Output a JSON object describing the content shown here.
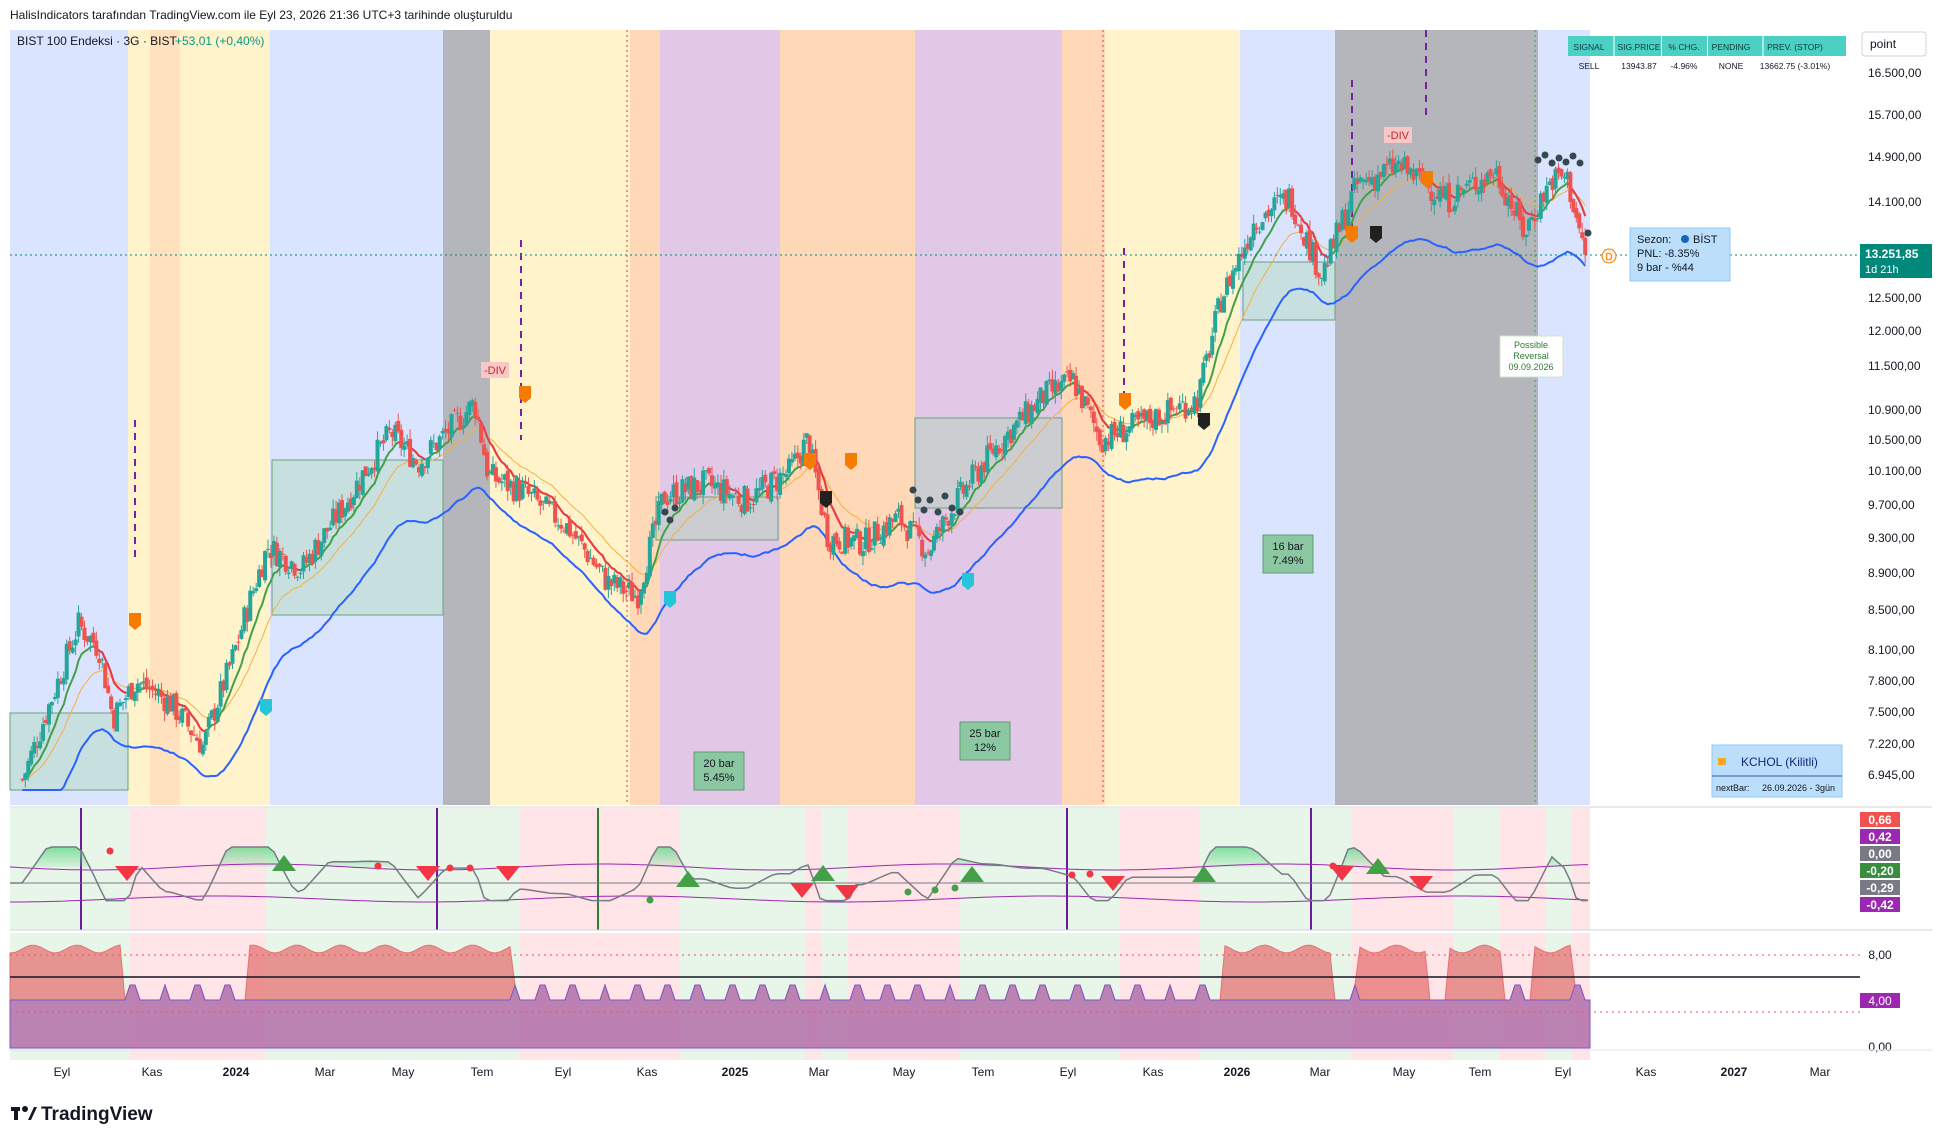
{
  "header": {
    "caption": "HalisIndicators tarafından TradingView.com ile Eyl 23, 2026 21:36 UTC+3 tarihinde oluşturuldu",
    "symbol_line": "BIST 100 Endeksi · 3G · BIST",
    "change": "+53,01 (+0,40%)",
    "scale_mode": "point"
  },
  "signal_table": {
    "headers": [
      "SIGNAL",
      "SIG.PRICE",
      "% CHG.",
      "PENDING",
      "PREV. (STOP)"
    ],
    "row": [
      "SELL",
      "13943.87",
      "-4.96%",
      "NONE",
      "13662.75 (-3.01%)"
    ]
  },
  "price_axis": {
    "labels": [
      "16.500,00",
      "15.700,00",
      "14.900,00",
      "14.100,00",
      "12.500,00",
      "12.000,00",
      "11.500,00",
      "10.900,00",
      "10.500,00",
      "10.100,00",
      "9.700,00",
      "9.300,00",
      "8.900,00",
      "8.500,00",
      "8.100,00",
      "7.800,00",
      "7.500,00",
      "7.220,00",
      "6.945,00"
    ],
    "current_price": "13.251,85",
    "current_countdown": "1d 21h"
  },
  "time_axis": {
    "labels": [
      "Eyl",
      "Kas",
      "2024",
      "Mar",
      "May",
      "Tem",
      "Eyl",
      "Kas",
      "2025",
      "Mar",
      "May",
      "Tem",
      "Eyl",
      "Kas",
      "2026",
      "Mar",
      "May",
      "Tem",
      "Eyl",
      "Kas",
      "2027",
      "Mar"
    ],
    "bold_labels": [
      "2024",
      "2025",
      "2026",
      "2027"
    ]
  },
  "position_box": {
    "line1": "Sezon:",
    "line1b": "BİST",
    "line2": "PNL: -8.35%",
    "line3": "9 bar - %44"
  },
  "reversal_label": {
    "line1": "Possible",
    "line2": "Reversal",
    "line3": "09.09.2026"
  },
  "div_labels": [
    "-DIV",
    "-DIV"
  ],
  "d_marker": "D",
  "bar_boxes": [
    {
      "bars": "20 bar",
      "pct": "5.45%"
    },
    {
      "bars": "25 bar",
      "pct": "12%"
    },
    {
      "bars": "16 bar",
      "pct": "7.49%"
    }
  ],
  "locked_panel": {
    "title": "KCHOL (Kilitli)",
    "next_bar_label": "nextBar:",
    "next_bar_value": "26.09.2026 - 3gün"
  },
  "osc_axis": {
    "labels": [
      "0,66",
      "0,42",
      "0,00",
      "-0,20",
      "-0,29",
      "-0,42"
    ],
    "colors": [
      "#ef5350",
      "#9c27b0",
      "#787b86",
      "#388e3c",
      "#787b86",
      "#9c27b0"
    ]
  },
  "vol_axis": {
    "labels": [
      "8,00",
      "4,00",
      "0,00"
    ]
  },
  "footer": {
    "brand": "TradingView"
  },
  "colors": {
    "up": "#26a69a",
    "down": "#ef5350",
    "red_line": "#f23645",
    "green_line": "#43a047",
    "blue_band": "#2962ff",
    "orange_ma": "#f5b041",
    "highlight": "#00897b"
  },
  "chart_data": {
    "type": "candlestick",
    "timeframe": "3G",
    "ylim": [
      6800,
      16800
    ],
    "x_range": [
      "2023-08",
      "2027-04"
    ],
    "close_path": [
      {
        "date": "2023-08-10",
        "value": 6900
      },
      {
        "date": "2023-09-01",
        "value": 7650
      },
      {
        "date": "2023-09-20",
        "value": 8350
      },
      {
        "date": "2023-10-05",
        "value": 8120
      },
      {
        "date": "2023-10-15",
        "value": 7450
      },
      {
        "date": "2023-11-01",
        "value": 7800
      },
      {
        "date": "2023-11-25",
        "value": 7600
      },
      {
        "date": "2023-12-20",
        "value": 7200
      },
      {
        "date": "2024-01-10",
        "value": 8000
      },
      {
        "date": "2024-02-05",
        "value": 9200
      },
      {
        "date": "2024-03-01",
        "value": 8950
      },
      {
        "date": "2024-04-01",
        "value": 9700
      },
      {
        "date": "2024-05-05",
        "value": 10600
      },
      {
        "date": "2024-05-25",
        "value": 10200
      },
      {
        "date": "2024-06-20",
        "value": 10700
      },
      {
        "date": "2024-07-05",
        "value": 11000
      },
      {
        "date": "2024-07-15",
        "value": 10050
      },
      {
        "date": "2024-08-10",
        "value": 9850
      },
      {
        "date": "2024-09-10",
        "value": 9450
      },
      {
        "date": "2024-10-10",
        "value": 8800
      },
      {
        "date": "2024-11-01",
        "value": 8650
      },
      {
        "date": "2024-11-20",
        "value": 9800
      },
      {
        "date": "2024-12-20",
        "value": 9950
      },
      {
        "date": "2025-01-20",
        "value": 9750
      },
      {
        "date": "2025-02-20",
        "value": 10100
      },
      {
        "date": "2025-03-05",
        "value": 10500
      },
      {
        "date": "2025-03-20",
        "value": 9300
      },
      {
        "date": "2025-04-15",
        "value": 9250
      },
      {
        "date": "2025-05-10",
        "value": 9550
      },
      {
        "date": "2025-06-01",
        "value": 9150
      },
      {
        "date": "2025-06-20",
        "value": 9700
      },
      {
        "date": "2025-07-20",
        "value": 10400
      },
      {
        "date": "2025-08-25",
        "value": 11100
      },
      {
        "date": "2025-09-15",
        "value": 11300
      },
      {
        "date": "2025-10-05",
        "value": 10500
      },
      {
        "date": "2025-10-25",
        "value": 10650
      },
      {
        "date": "2025-11-20",
        "value": 10850
      },
      {
        "date": "2025-12-15",
        "value": 11050
      },
      {
        "date": "2026-01-01",
        "value": 12500
      },
      {
        "date": "2026-01-25",
        "value": 13800
      },
      {
        "date": "2026-02-20",
        "value": 14200
      },
      {
        "date": "2026-03-15",
        "value": 12900
      },
      {
        "date": "2026-04-10",
        "value": 14400
      },
      {
        "date": "2026-05-10",
        "value": 14750
      },
      {
        "date": "2026-06-15",
        "value": 14150
      },
      {
        "date": "2026-07-20",
        "value": 14650
      },
      {
        "date": "2026-08-10",
        "value": 13600
      },
      {
        "date": "2026-08-30",
        "value": 14500
      },
      {
        "date": "2026-09-10",
        "value": 14550
      },
      {
        "date": "2026-09-23",
        "value": 13251.85
      }
    ],
    "last_price": 13251.85,
    "last_change": 53.01,
    "last_change_pct": 0.4,
    "signal": {
      "type": "SELL",
      "price": 13943.87,
      "change_pct": -4.96,
      "pending": "NONE",
      "prev_stop": 13662.75,
      "prev_stop_pct": -3.01
    },
    "oscillator": {
      "levels": [
        0.66,
        0.42,
        0.0,
        -0.2,
        -0.29,
        -0.42
      ]
    },
    "histogram": {
      "levels": [
        8.0,
        4.0,
        0.0
      ]
    }
  }
}
